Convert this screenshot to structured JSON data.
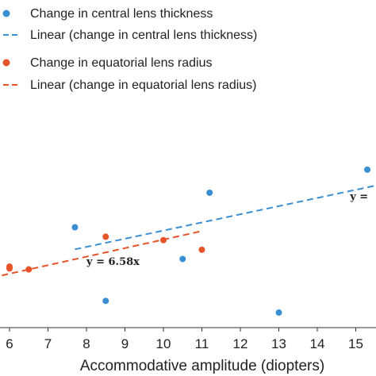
{
  "chart_data": {
    "type": "scatter",
    "title": "",
    "xlabel": "Accommodative amplitude (diopters)",
    "ylabel": "",
    "xlim": [
      5.8,
      15.5
    ],
    "ylim": [
      0,
      1
    ],
    "x_ticks": [
      "6",
      "7",
      "8",
      "9",
      "10",
      "11",
      "12",
      "13",
      "14",
      "15"
    ],
    "grid": false,
    "legend_position": "top-left",
    "series": [
      {
        "name": "Change in central lens thickness",
        "kind": "points",
        "color": "#3a8fd3",
        "marker": "circle",
        "points": [
          {
            "x": 7.7,
            "y": 0.5
          },
          {
            "x": 8.5,
            "y": 0.133
          },
          {
            "x": 10.5,
            "y": 0.342
          },
          {
            "x": 11.2,
            "y": 0.672
          },
          {
            "x": 13.0,
            "y": 0.075
          },
          {
            "x": 15.3,
            "y": 0.787
          }
        ]
      },
      {
        "name": "Linear (change in central lens thickness)",
        "kind": "trendline",
        "color": "#3a8fd3",
        "dash": "dashed",
        "points": [
          {
            "x": 7.7,
            "y": 0.39
          },
          {
            "x": 15.5,
            "y": 0.707
          }
        ]
      },
      {
        "name": "Change in equatorial lens radius",
        "kind": "points",
        "color": "#e8542a",
        "marker": "circle",
        "points": [
          {
            "x": 6.0,
            "y": 0.304
          },
          {
            "x": 6.0,
            "y": 0.295
          },
          {
            "x": 6.5,
            "y": 0.29
          },
          {
            "x": 8.5,
            "y": 0.453
          },
          {
            "x": 10.0,
            "y": 0.436
          },
          {
            "x": 11.0,
            "y": 0.388
          }
        ]
      },
      {
        "name": "Linear (change in equatorial lens radius)",
        "kind": "trendline",
        "color": "#e8542a",
        "dash": "dashed",
        "points": [
          {
            "x": 5.8,
            "y": 0.26
          },
          {
            "x": 11.0,
            "y": 0.481
          }
        ]
      }
    ],
    "annotations": [
      {
        "text": "y = 6.58x",
        "x": 8.0,
        "y": 0.312
      },
      {
        "text": "y =",
        "x": 14.85,
        "y": 0.637
      }
    ]
  }
}
